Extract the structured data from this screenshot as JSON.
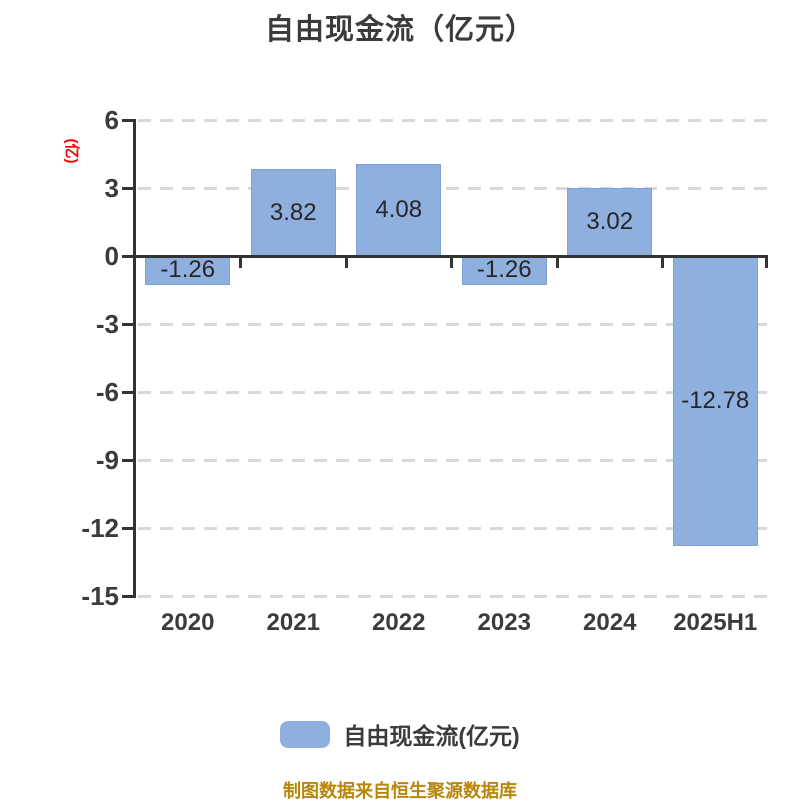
{
  "title": "自由现金流（亿元）",
  "y_axis_unit_label": "(亿)",
  "legend": {
    "label": "自由现金流(亿元)"
  },
  "footer": {
    "attribution": "制图数据来自恒生聚源数据库"
  },
  "colors": {
    "bar_fill": "#8FB0DF",
    "bar_border": "#7FA2D2",
    "axis": "#333333",
    "gridline": "#D9D9D9",
    "text_dark": "#3B3B3B",
    "value_label": "#262626",
    "y_unit_red": "#FE0000",
    "attribution_gold": "#B8860B"
  },
  "chart_data": {
    "type": "bar",
    "title": "自由现金流（亿元）",
    "categories": [
      "2020",
      "2021",
      "2022",
      "2023",
      "2024",
      "2025H1"
    ],
    "values": [
      -1.26,
      3.82,
      4.08,
      -1.26,
      3.02,
      -12.78
    ],
    "value_labels": [
      "-1.26",
      "3.82",
      "4.08",
      "-1.26",
      "3.02",
      "-12.78"
    ],
    "xlabel": "",
    "ylabel": "(亿)",
    "ylim": [
      -15,
      6
    ],
    "yticks": [
      6,
      3,
      0,
      -3,
      -6,
      -9,
      -12,
      -15
    ],
    "grid": "horizontal-dashed",
    "legend_entries": [
      "自由现金流(亿元)"
    ],
    "legend_position": "bottom"
  }
}
